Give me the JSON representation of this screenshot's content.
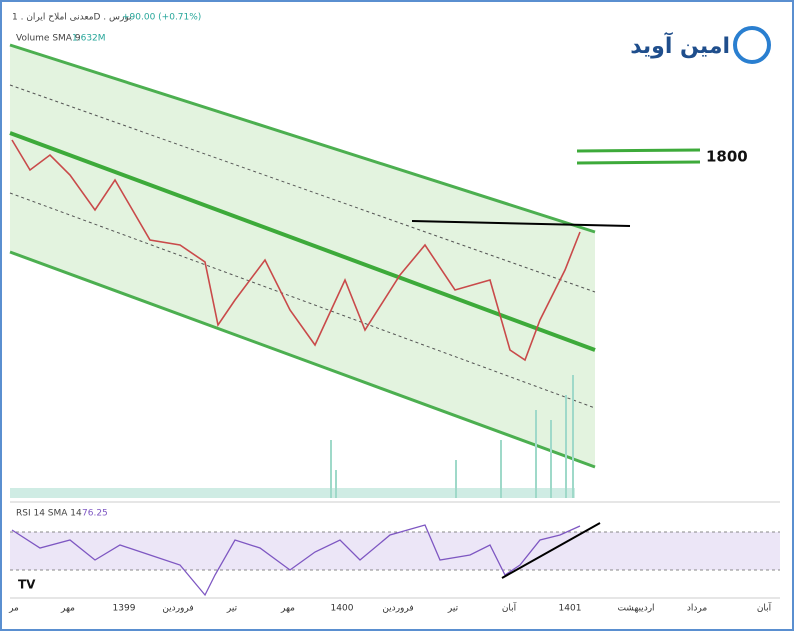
{
  "header": {
    "symbol": "معدنی املاح ایران . 1D . بورس",
    "change": "+90.00 (+0.71%)"
  },
  "volume": {
    "name": "Volume SMA 9",
    "value": "1.632M"
  },
  "logo": "امین آوید",
  "level_label": "1800",
  "rsi": {
    "name": "RSI 14 SMA 14",
    "value": "76.25"
  },
  "x_axis": [
    "مر",
    "مهر",
    "1399",
    "فروردین",
    "تیر",
    "مهر",
    "1400",
    "فروردین",
    "تیر",
    "آبان",
    "1401",
    "اردیبهشت",
    "مرداد",
    "آبان"
  ]
}
